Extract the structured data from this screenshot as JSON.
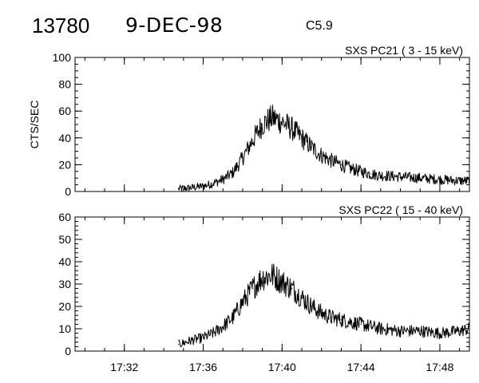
{
  "header": {
    "event_id": "13780",
    "date": "9-DEC-98",
    "goes_class": "C5.9"
  },
  "chart_data": [
    {
      "type": "line",
      "title": "SXS PC21 ( 3 - 15 keV)",
      "xlabel": "",
      "ylabel": "CTS/SEC",
      "xlim": [
        "17:29:30",
        "17:49:30"
      ],
      "ylim": [
        0,
        100
      ],
      "yticks": [
        0,
        20,
        40,
        60,
        80,
        100
      ],
      "xticks": [
        "17:32",
        "17:36",
        "17:40",
        "17:44",
        "17:48"
      ],
      "grid": false,
      "series": [
        {
          "x": [
            "17:34:45",
            "17:35:30",
            "17:36:00",
            "17:36:30",
            "17:37:00",
            "17:37:30",
            "17:38:00",
            "17:38:30",
            "17:39:00",
            "17:39:30",
            "17:40:00",
            "17:40:30",
            "17:41:00",
            "17:41:30",
            "17:42:00",
            "17:42:30",
            "17:43:00",
            "17:43:30",
            "17:44:00",
            "17:44:30",
            "17:45:00",
            "17:46:00",
            "17:47:00",
            "17:48:00",
            "17:49:00",
            "17:49:30"
          ],
          "values": [
            2,
            3,
            4,
            6,
            9,
            14,
            25,
            38,
            50,
            55,
            52,
            47,
            40,
            33,
            27,
            23,
            20,
            17,
            15,
            13,
            12,
            11,
            10,
            9,
            8,
            8
          ]
        }
      ]
    },
    {
      "type": "line",
      "title": "SXS PC22 ( 15 - 40 keV)",
      "xlabel": "",
      "ylabel": "",
      "xlim": [
        "17:29:30",
        "17:49:30"
      ],
      "ylim": [
        0,
        60
      ],
      "yticks": [
        0,
        10,
        20,
        30,
        40,
        50,
        60
      ],
      "xticks": [
        "17:32",
        "17:36",
        "17:40",
        "17:44",
        "17:48"
      ],
      "grid": false,
      "series": [
        {
          "x": [
            "17:34:45",
            "17:35:30",
            "17:36:00",
            "17:36:30",
            "17:37:00",
            "17:37:30",
            "17:38:00",
            "17:38:30",
            "17:39:00",
            "17:39:30",
            "17:40:00",
            "17:40:30",
            "17:41:00",
            "17:41:30",
            "17:42:00",
            "17:42:30",
            "17:43:00",
            "17:43:30",
            "17:44:00",
            "17:44:30",
            "17:45:00",
            "17:46:00",
            "17:47:00",
            "17:48:00",
            "17:49:00",
            "17:49:30"
          ],
          "values": [
            3,
            5,
            6,
            8,
            11,
            15,
            22,
            28,
            33,
            34,
            31,
            28,
            24,
            20,
            17,
            15,
            14,
            13,
            12,
            11,
            10,
            9,
            9,
            8,
            9,
            10
          ]
        }
      ]
    }
  ]
}
